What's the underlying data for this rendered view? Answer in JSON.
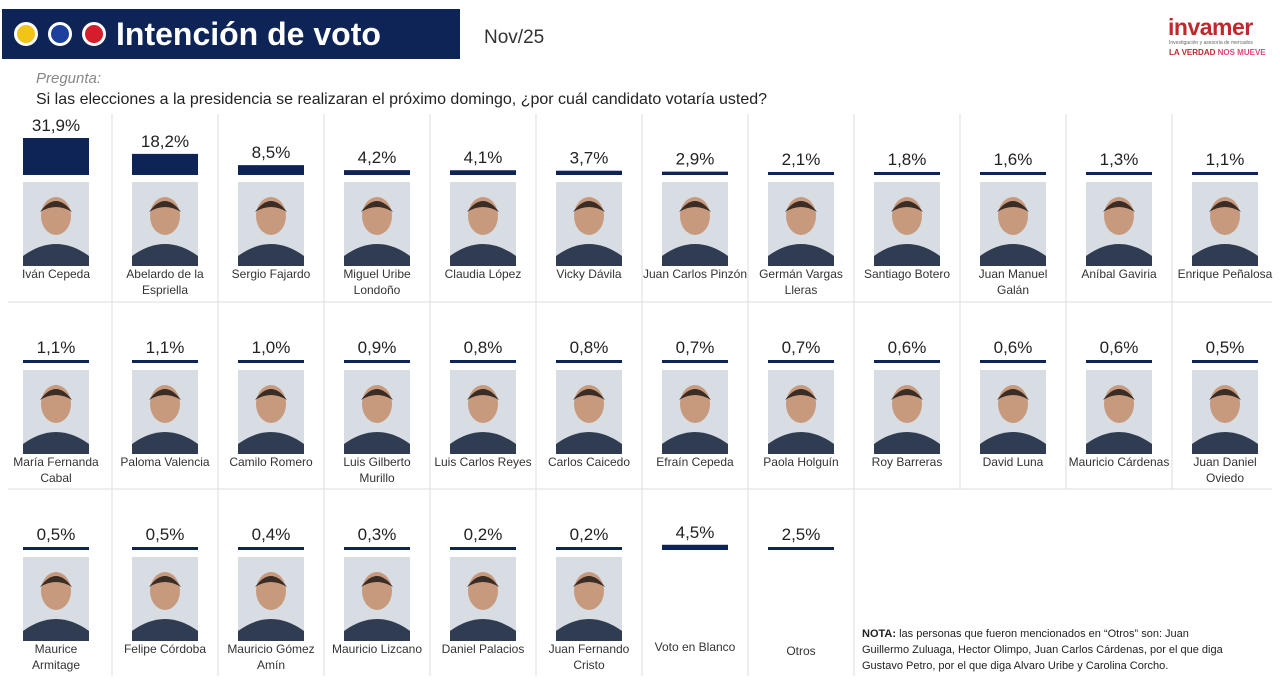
{
  "header": {
    "title": "Intención de voto",
    "date": "Nov/25",
    "brand": {
      "name": "invamer",
      "subtitle": "Investigación y asesoría de mercados",
      "slogan_main": "LA VERDAD",
      "slogan_accent": "NOS MUEVE"
    },
    "colors": {
      "title_bar": "#0e2356",
      "dot_1": "#f2c416",
      "dot_2": "#1f3f9e",
      "dot_3": "#d51d2b",
      "bar": "#0e2356",
      "brand": "#c1272d"
    }
  },
  "question": {
    "label": "Pregunta:",
    "text": "Si las elecciones a la presidencia se realizaran el próximo domingo, ¿por cuál candidato votaría usted?"
  },
  "chart_data": {
    "type": "bar",
    "title": "Intención de voto",
    "value_format": "percent, comma decimal",
    "categories": [
      "Iván Cepeda",
      "Abelardo de la Espriella",
      "Sergio Fajardo",
      "Miguel Uribe Londoño",
      "Claudia López",
      "Vicky Dávila",
      "Juan Carlos Pinzón",
      "Germán Vargas Lleras",
      "Santiago Botero",
      "Juan Manuel Galán",
      "Aníbal Gaviria",
      "Enrique Peñalosa",
      "María Fernanda Cabal",
      "Paloma Valencia",
      "Camilo Romero",
      "Luis Gilberto Murillo",
      "Luis Carlos Reyes",
      "Carlos Caicedo",
      "Efraín Cepeda",
      "Paola Holguín",
      "Roy Barreras",
      "David Luna",
      "Mauricio Cárdenas",
      "Juan Daniel Oviedo",
      "Maurice Armitage",
      "Felipe Córdoba",
      "Mauricio Gómez Amín",
      "Mauricio Lizcano",
      "Daniel Palacios",
      "Juan Fernando Cristo",
      "Voto en Blanco",
      "Otros"
    ],
    "name_lines": [
      [
        "Iván Cepeda"
      ],
      [
        "Abelardo de la",
        "Espriella"
      ],
      [
        "Sergio Fajardo"
      ],
      [
        "Miguel Uribe",
        "Londoño"
      ],
      [
        "Claudia López"
      ],
      [
        "Vicky Dávila"
      ],
      [
        "Juan Carlos Pinzón"
      ],
      [
        "Germán Vargas",
        "Lleras"
      ],
      [
        "Santiago Botero"
      ],
      [
        "Juan Manuel",
        "Galán"
      ],
      [
        "Aníbal Gaviria"
      ],
      [
        "Enrique Peñalosa"
      ],
      [
        "María Fernanda",
        "Cabal"
      ],
      [
        "Paloma Valencia"
      ],
      [
        "Camilo Romero"
      ],
      [
        "Luis Gilberto",
        "Murillo"
      ],
      [
        "Luis Carlos Reyes"
      ],
      [
        "Carlos Caicedo"
      ],
      [
        "Efraín Cepeda"
      ],
      [
        "Paola Holguín"
      ],
      [
        "Roy Barreras"
      ],
      [
        "David Luna"
      ],
      [
        "Mauricio Cárdenas"
      ],
      [
        "Juan Daniel",
        "Oviedo"
      ],
      [
        "Maurice",
        "Armitage"
      ],
      [
        "Felipe Córdoba"
      ],
      [
        "Mauricio Gómez",
        "Amín"
      ],
      [
        "Mauricio Lizcano"
      ],
      [
        "Daniel Palacios"
      ],
      [
        "Juan Fernando",
        "Cristo"
      ],
      [
        "Voto en Blanco"
      ],
      [
        "Otros"
      ]
    ],
    "values": [
      31.9,
      18.2,
      8.5,
      4.2,
      4.1,
      3.7,
      2.9,
      2.1,
      1.8,
      1.6,
      1.3,
      1.1,
      1.1,
      1.1,
      1.0,
      0.9,
      0.8,
      0.8,
      0.7,
      0.7,
      0.6,
      0.6,
      0.6,
      0.5,
      0.5,
      0.5,
      0.4,
      0.3,
      0.2,
      0.2,
      4.5,
      2.5
    ],
    "labels": [
      "31,9%",
      "18,2%",
      "8,5%",
      "4,2%",
      "4,1%",
      "3,7%",
      "2,9%",
      "2,1%",
      "1,8%",
      "1,6%",
      "1,3%",
      "1,1%",
      "1,1%",
      "1,1%",
      "1,0%",
      "0,9%",
      "0,8%",
      "0,8%",
      "0,7%",
      "0,7%",
      "0,6%",
      "0,6%",
      "0,6%",
      "0,5%",
      "0,5%",
      "0,5%",
      "0,4%",
      "0,3%",
      "0,2%",
      "0,2%",
      "4,5%",
      "2,5%"
    ],
    "has_photo": [
      true,
      true,
      true,
      true,
      true,
      true,
      true,
      true,
      true,
      true,
      true,
      true,
      true,
      true,
      true,
      true,
      true,
      true,
      true,
      true,
      true,
      true,
      true,
      true,
      true,
      true,
      true,
      true,
      true,
      true,
      false,
      false
    ],
    "layout": "grid of 3 rows, 12 columns",
    "grid": true,
    "legend": "none"
  },
  "note": {
    "label": "NOTA:",
    "text": "las personas que fueron mencionados en “Otros” son: Juan Guillermo Zuluaga, Hector Olimpo, Juan Carlos Cárdenas, por el que diga Gustavo Petro, por el que diga Alvaro Uribe y Carolina Corcho."
  }
}
